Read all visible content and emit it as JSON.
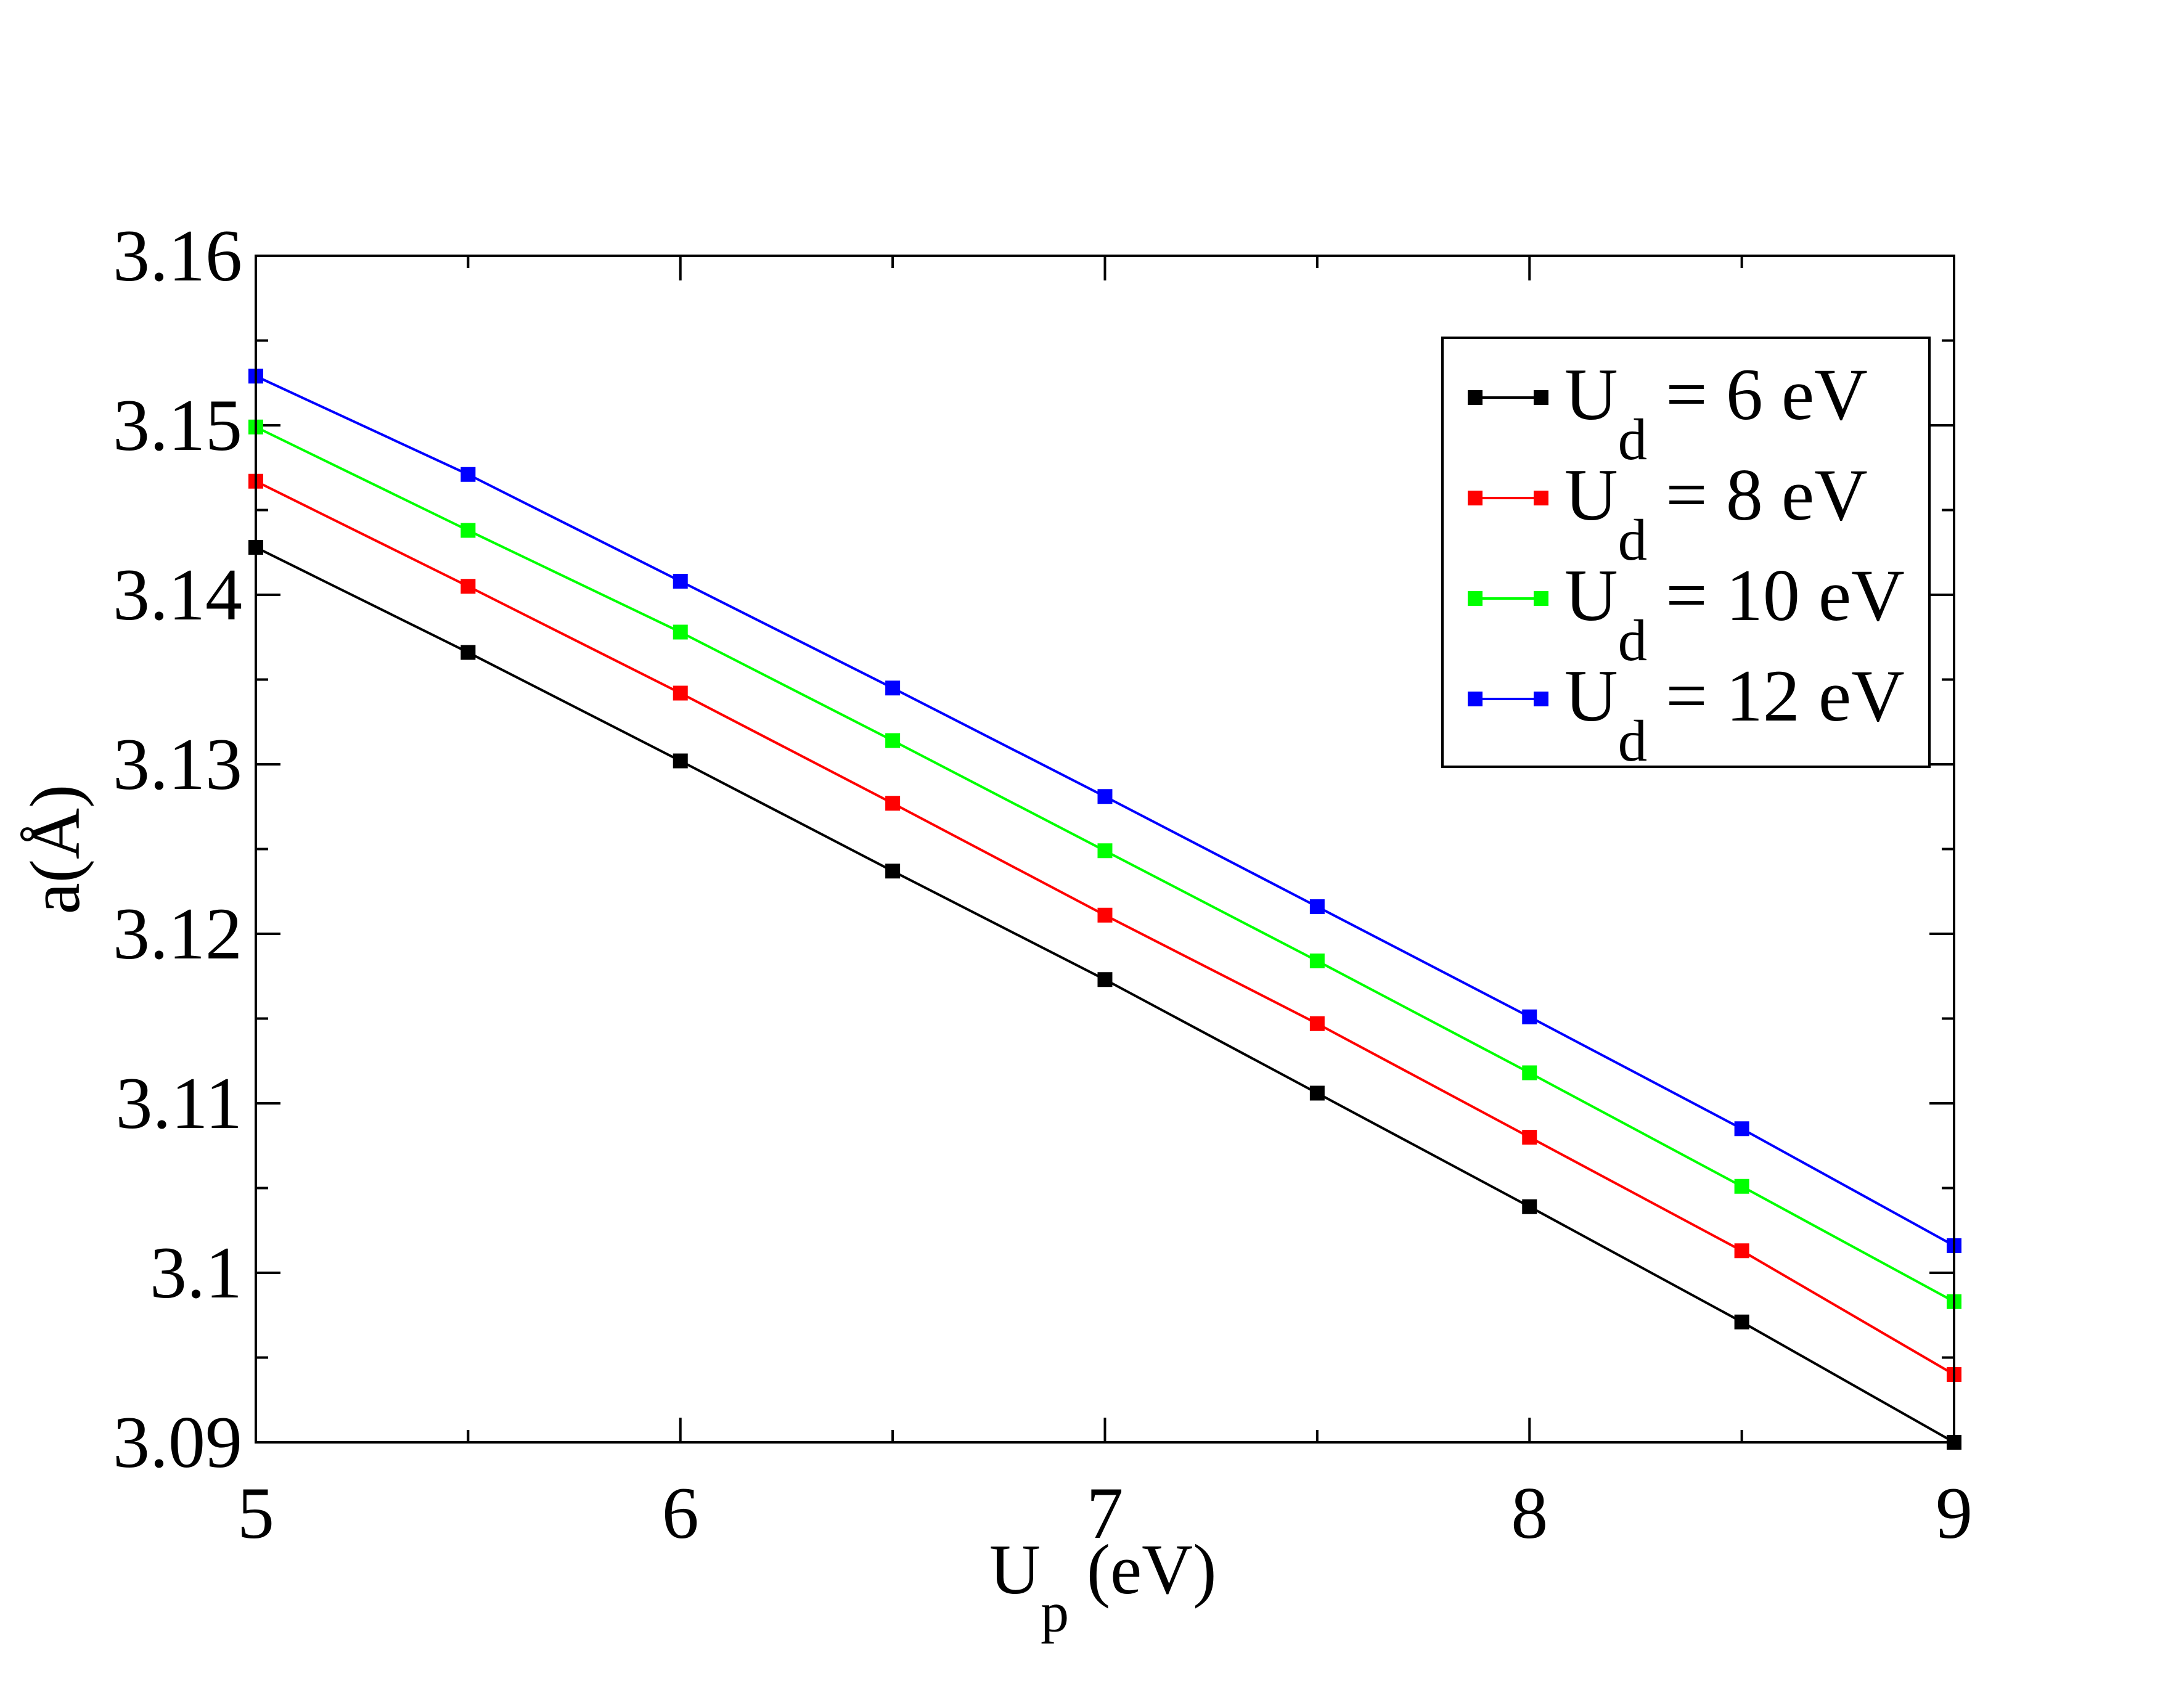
{
  "chart_data": {
    "type": "line",
    "xlabel": {
      "main": "U",
      "sub": "p",
      "rest": " (eV)"
    },
    "ylabel": "a(Å)",
    "xlim": [
      5,
      9
    ],
    "ylim": [
      3.09,
      3.16
    ],
    "xticks": [
      5,
      6,
      7,
      8,
      9
    ],
    "xtick_labels": [
      "5",
      "6",
      "7",
      "8",
      "9"
    ],
    "yticks": [
      3.09,
      3.1,
      3.11,
      3.12,
      3.13,
      3.14,
      3.15,
      3.16
    ],
    "ytick_labels": [
      "3.09",
      "3.1",
      "3.11",
      "3.12",
      "3.13",
      "3.14",
      "3.15",
      "3.16"
    ],
    "x": [
      5,
      5.5,
      6,
      6.5,
      7,
      7.5,
      8,
      8.5,
      9
    ],
    "grid": false,
    "legend_position": "top-right",
    "series": [
      {
        "name": "U_d = 6 eV",
        "legend": {
          "main": "U",
          "sub": "d",
          "rest": " = 6 eV"
        },
        "color": "#000000",
        "marker": "square",
        "values": [
          3.1428,
          3.1366,
          3.1302,
          3.1237,
          3.1173,
          3.1106,
          3.1039,
          3.0971,
          3.09
        ]
      },
      {
        "name": "U_d = 8 eV",
        "legend": {
          "main": "U",
          "sub": "d",
          "rest": " = 8 eV"
        },
        "color": "#ff0000",
        "marker": "square",
        "values": [
          3.1467,
          3.1405,
          3.1342,
          3.1277,
          3.1211,
          3.1147,
          3.108,
          3.1013,
          3.094
        ]
      },
      {
        "name": "U_d = 10 eV",
        "legend": {
          "main": "U",
          "sub": "d",
          "rest": " = 10 eV"
        },
        "color": "#00ff00",
        "marker": "square",
        "values": [
          3.1499,
          3.1438,
          3.1378,
          3.1314,
          3.1249,
          3.1184,
          3.1118,
          3.1051,
          3.0983
        ]
      },
      {
        "name": "U_d = 12 eV",
        "legend": {
          "main": "U",
          "sub": "d",
          "rest": " = 12 eV"
        },
        "color": "#0000ff",
        "marker": "square",
        "values": [
          3.1529,
          3.1471,
          3.1408,
          3.1345,
          3.1281,
          3.1216,
          3.1151,
          3.1085,
          3.1016
        ]
      }
    ]
  }
}
